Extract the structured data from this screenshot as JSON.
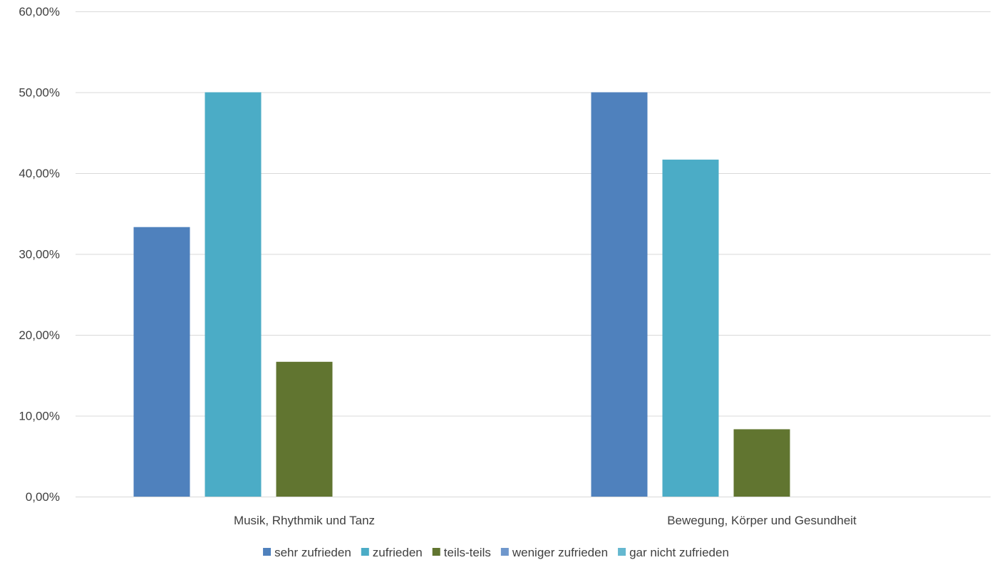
{
  "chart_data": {
    "type": "bar",
    "categories": [
      "Musik, Rhythmik und Tanz",
      "Bewegung, Körper und Gesundheit"
    ],
    "series": [
      {
        "name": "sehr zufrieden",
        "values": [
          33.33,
          50.0
        ],
        "color": "#4f81bd"
      },
      {
        "name": "zufrieden",
        "values": [
          50.0,
          41.67
        ],
        "color": "#4bacc6"
      },
      {
        "name": "teils-teils",
        "values": [
          16.67,
          8.33
        ],
        "color": "#617530"
      },
      {
        "name": "weniger zufrieden",
        "values": [
          0,
          0
        ],
        "color": "#6f97cc"
      },
      {
        "name": "gar nicht zufrieden",
        "values": [
          0,
          0
        ],
        "color": "#65b8d0"
      }
    ],
    "y_ticks": [
      "0,00%",
      "10,00%",
      "20,00%",
      "30,00%",
      "40,00%",
      "50,00%",
      "60,00%"
    ],
    "ylim": [
      0,
      60
    ],
    "grid": true,
    "legend": "bottom",
    "xlabel": "",
    "ylabel": "",
    "title": ""
  }
}
